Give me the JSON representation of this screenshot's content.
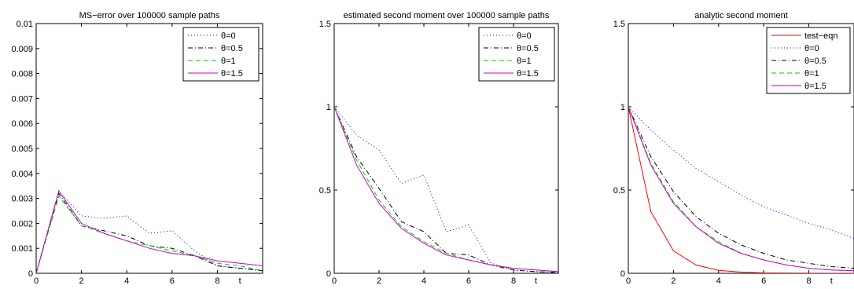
{
  "chart_data": [
    {
      "type": "line",
      "title": "MS−error over 100000 sample paths",
      "xlabel": "t",
      "ylabel": "",
      "xlim": [
        0,
        10
      ],
      "ylim": [
        0,
        0.01
      ],
      "xticks": [
        0,
        2,
        4,
        6,
        8
      ],
      "xtick_labels": [
        "0",
        "2",
        "4",
        "6",
        "8"
      ],
      "yticks": [
        0,
        0.001,
        0.002,
        0.003,
        0.004,
        0.005,
        0.006,
        0.007,
        0.008,
        0.009,
        0.01
      ],
      "ytick_labels": [
        "0",
        "0.001",
        "0.002",
        "0.003",
        "0.004",
        "0.005",
        "0.006",
        "0.007",
        "0.008",
        "0.009",
        "0.01"
      ],
      "legend_position": "top-right",
      "x": [
        0,
        1,
        2,
        3,
        4,
        5,
        6,
        7,
        8,
        9,
        10
      ],
      "series": [
        {
          "name": "θ=0",
          "color": "#0000ff",
          "dash": "dotted",
          "values": [
            0,
            0.0033,
            0.0023,
            0.0022,
            0.0023,
            0.0016,
            0.0017,
            0.0009,
            0.0003,
            0.0002,
            0.0001
          ]
        },
        {
          "name": "θ=0.5",
          "color": "#000000",
          "dash": "dashdot",
          "values": [
            0,
            0.0032,
            0.0019,
            0.0017,
            0.0015,
            0.0011,
            0.001,
            0.0007,
            0.0003,
            0.0002,
            0.0001
          ]
        },
        {
          "name": "θ=1",
          "color": "#00cc00",
          "dash": "dashed",
          "values": [
            0,
            0.0031,
            0.0019,
            0.0016,
            0.0013,
            0.0011,
            0.0009,
            0.0007,
            0.0004,
            0.0003,
            0.0001
          ]
        },
        {
          "name": "θ=1.5",
          "color": "#cc00cc",
          "dash": "solid",
          "values": [
            0,
            0.0033,
            0.002,
            0.0016,
            0.0013,
            0.001,
            0.0008,
            0.0007,
            0.0005,
            0.0004,
            0.0003
          ]
        }
      ]
    },
    {
      "type": "line",
      "title": "estimated second moment over 100000 sample paths",
      "xlabel": "t",
      "ylabel": "",
      "xlim": [
        0,
        10
      ],
      "ylim": [
        0,
        1.5
      ],
      "xticks": [
        0,
        2,
        4,
        6,
        8
      ],
      "xtick_labels": [
        "0",
        "2",
        "4",
        "6",
        "8"
      ],
      "yticks": [
        0,
        0.5,
        1,
        1.5
      ],
      "ytick_labels": [
        "0",
        "0.5",
        "1",
        "1.5"
      ],
      "legend_position": "top-right",
      "x": [
        0,
        1,
        2,
        3,
        4,
        5,
        6,
        7,
        8,
        9,
        10
      ],
      "series": [
        {
          "name": "θ=0",
          "color": "#0000ff",
          "dash": "dotted",
          "values": [
            1.0,
            0.83,
            0.74,
            0.54,
            0.59,
            0.25,
            0.29,
            0.06,
            0.02,
            0.01,
            0.0
          ]
        },
        {
          "name": "θ=0.5",
          "color": "#000000",
          "dash": "dashdot",
          "values": [
            1.0,
            0.7,
            0.51,
            0.31,
            0.25,
            0.12,
            0.11,
            0.05,
            0.02,
            0.01,
            0.005
          ]
        },
        {
          "name": "θ=1",
          "color": "#00cc00",
          "dash": "dashed",
          "values": [
            1.0,
            0.68,
            0.44,
            0.28,
            0.19,
            0.12,
            0.08,
            0.05,
            0.03,
            0.02,
            0.01
          ]
        },
        {
          "name": "θ=1.5",
          "color": "#cc00cc",
          "dash": "solid",
          "values": [
            1.0,
            0.65,
            0.42,
            0.27,
            0.18,
            0.11,
            0.08,
            0.05,
            0.03,
            0.02,
            0.01
          ]
        }
      ]
    },
    {
      "type": "line",
      "title": "analytic second moment",
      "xlabel": "t",
      "ylabel": "",
      "xlim": [
        0,
        10
      ],
      "ylim": [
        0,
        1.5
      ],
      "xticks": [
        0,
        2,
        4,
        6,
        8
      ],
      "xtick_labels": [
        "0",
        "2",
        "4",
        "6",
        "8"
      ],
      "yticks": [
        0,
        0.5,
        1,
        1.5
      ],
      "ytick_labels": [
        "0",
        "0.5",
        "1",
        "1.5"
      ],
      "legend_position": "top-right",
      "x": [
        0,
        1,
        2,
        3,
        4,
        5,
        6,
        7,
        8,
        9,
        10
      ],
      "series": [
        {
          "name": "test−eqn",
          "color": "#ff0000",
          "dash": "solid",
          "values": [
            1.0,
            0.37,
            0.135,
            0.05,
            0.018,
            0.007,
            0.0025,
            0.0009,
            0.0003,
            0.0001,
            0.0
          ]
        },
        {
          "name": "θ=0",
          "color": "#0000ff",
          "dash": "dotted",
          "values": [
            1.0,
            0.86,
            0.74,
            0.63,
            0.55,
            0.47,
            0.4,
            0.35,
            0.3,
            0.26,
            0.21
          ]
        },
        {
          "name": "θ=0.5",
          "color": "#000000",
          "dash": "dashdot",
          "values": [
            1.0,
            0.7,
            0.49,
            0.34,
            0.24,
            0.17,
            0.12,
            0.08,
            0.06,
            0.04,
            0.03
          ]
        },
        {
          "name": "θ=1",
          "color": "#00cc00",
          "dash": "dashed",
          "values": [
            1.0,
            0.66,
            0.43,
            0.28,
            0.19,
            0.12,
            0.08,
            0.05,
            0.03,
            0.02,
            0.015
          ]
        },
        {
          "name": "θ=1.5",
          "color": "#cc00cc",
          "dash": "solid",
          "values": [
            1.0,
            0.65,
            0.42,
            0.28,
            0.18,
            0.12,
            0.08,
            0.05,
            0.03,
            0.02,
            0.015
          ]
        }
      ]
    }
  ]
}
